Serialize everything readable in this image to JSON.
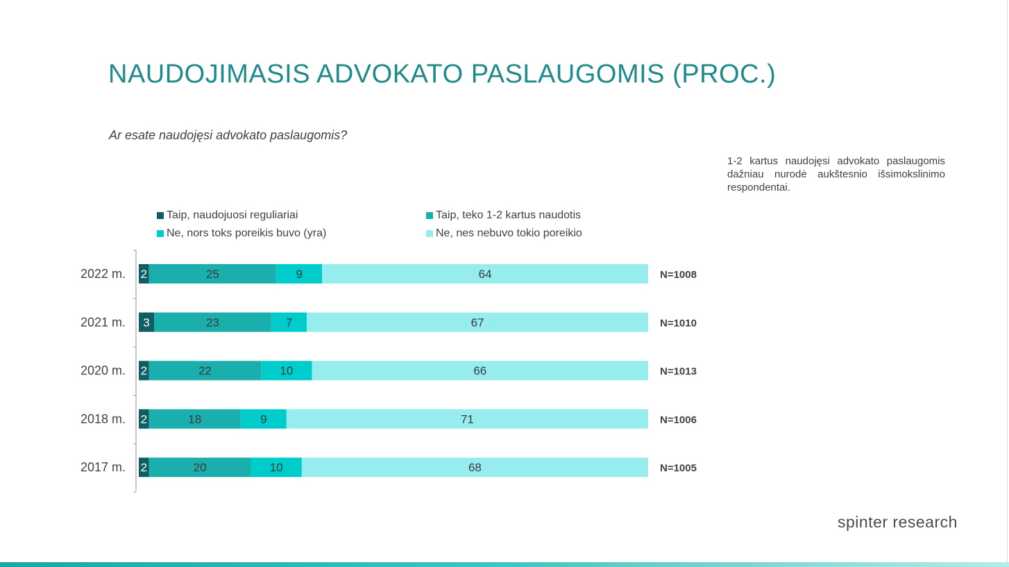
{
  "slide": {
    "title": "NAUDOJIMASIS ADVOKATO PASLAUGOMIS (PROC.)",
    "question": "Ar esate naudojęsi advokato paslaugomis?",
    "note": "1-2 kartus naudojęsi advokato paslaugomis dažniau nurodė aukštesnio išsimokslinimo respondentai.",
    "logo": "spinter research"
  },
  "chart_data": {
    "type": "bar",
    "orientation": "horizontal",
    "stacked": true,
    "categories": [
      "2022 m.",
      "2021 m.",
      "2020 m.",
      "2018 m.",
      "2017 m."
    ],
    "sample_sizes": [
      "N=1008",
      "N=1010",
      "N=1013",
      "N=1006",
      "N=1005"
    ],
    "series": [
      {
        "name": "Taip, naudojuosi reguliariai",
        "color": "#0e5e63",
        "values": [
          2,
          3,
          2,
          2,
          2
        ]
      },
      {
        "name": "Taip, teko 1-2 kartus naudotis",
        "color": "#1aafac",
        "values": [
          25,
          23,
          22,
          18,
          20
        ]
      },
      {
        "name": "Ne, nors toks poreikis buvo (yra)",
        "color": "#00cccc",
        "values": [
          9,
          7,
          10,
          9,
          10
        ]
      },
      {
        "name": "Ne, nes nebuvo tokio poreikio",
        "color": "#97eded",
        "values": [
          64,
          67,
          66,
          71,
          68
        ]
      }
    ],
    "xlim": [
      0,
      100
    ],
    "legend_position": "top",
    "grid": false
  }
}
